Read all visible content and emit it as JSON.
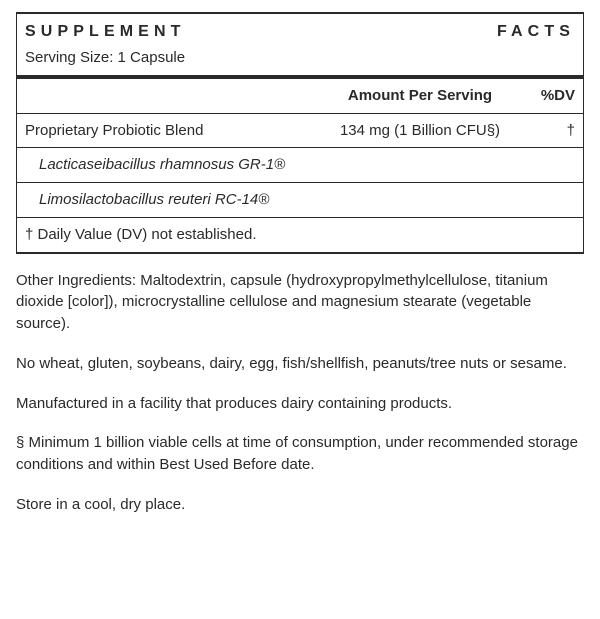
{
  "title_left": "SUPPLEMENT",
  "title_right": "FACTS",
  "serving_size": "Serving Size: 1 Capsule",
  "header": {
    "amount": "Amount Per Serving",
    "dv": "%DV"
  },
  "blend_row": {
    "name": "Proprietary Probiotic Blend",
    "amount": "134 mg (1 Billion CFU§)",
    "dv": "†"
  },
  "strains": [
    "Lacticaseibacillus rhamnosus GR-1®",
    "Limosilactobacillus reuteri RC-14®"
  ],
  "footer": "† Daily Value (DV) not established.",
  "paragraphs": [
    "Other Ingredients: Maltodextrin, capsule (hydroxypropylmethylcellulose, titanium dioxide [color]), microcrystalline cellulose and magnesium stearate (vegetable source).",
    "No wheat, gluten, soybeans, dairy, egg, fish/shellfish, peanuts/tree nuts or sesame.",
    "Manufactured in a facility that produces dairy containing products.",
    "§ Minimum 1 billion viable cells at time of consumption, under recommended storage conditions and within Best Used Before date.",
    "Store in a cool, dry place."
  ]
}
